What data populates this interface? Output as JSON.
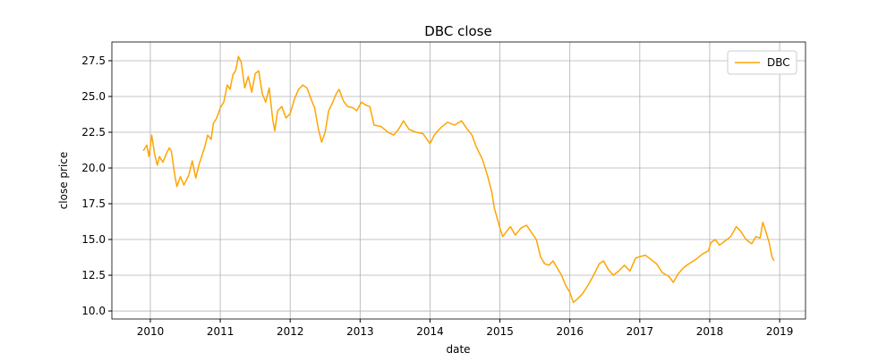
{
  "chart_data": {
    "type": "line",
    "title": "DBC close",
    "xlabel": "date",
    "ylabel": "close price",
    "x": [
      2009.9,
      2009.95,
      2009.98,
      2010.0,
      2010.02,
      2010.06,
      2010.1,
      2010.13,
      2010.18,
      2010.22,
      2010.27,
      2010.3,
      2010.35,
      2010.38,
      2010.43,
      2010.48,
      2010.55,
      2010.6,
      2010.65,
      2010.7,
      2010.78,
      2010.82,
      2010.87,
      2010.9,
      2010.95,
      2011.0,
      2011.05,
      2011.1,
      2011.14,
      2011.18,
      2011.22,
      2011.26,
      2011.3,
      2011.35,
      2011.4,
      2011.45,
      2011.5,
      2011.55,
      2011.6,
      2011.65,
      2011.7,
      2011.75,
      2011.78,
      2011.82,
      2011.88,
      2011.94,
      2012.0,
      2012.06,
      2012.12,
      2012.18,
      2012.24,
      2012.3,
      2012.35,
      2012.4,
      2012.45,
      2012.5,
      2012.55,
      2012.6,
      2012.66,
      2012.7,
      2012.76,
      2012.82,
      2012.9,
      2012.95,
      2013.02,
      2013.08,
      2013.14,
      2013.2,
      2013.3,
      2013.4,
      2013.48,
      2013.55,
      2013.62,
      2013.7,
      2013.8,
      2013.9,
      2014.0,
      2014.06,
      2014.15,
      2014.25,
      2014.35,
      2014.45,
      2014.52,
      2014.6,
      2014.66,
      2014.75,
      2014.82,
      2014.88,
      2014.92,
      2015.0,
      2015.04,
      2015.1,
      2015.15,
      2015.22,
      2015.3,
      2015.38,
      2015.45,
      2015.52,
      2015.58,
      2015.64,
      2015.7,
      2015.76,
      2015.82,
      2015.88,
      2015.94,
      2016.0,
      2016.05,
      2016.1,
      2016.18,
      2016.26,
      2016.34,
      2016.42,
      2016.48,
      2016.55,
      2016.62,
      2016.7,
      2016.78,
      2016.86,
      2016.94,
      2017.0,
      2017.08,
      2017.16,
      2017.24,
      2017.32,
      2017.42,
      2017.48,
      2017.55,
      2017.62,
      2017.7,
      2017.8,
      2017.9,
      2017.98,
      2018.02,
      2018.08,
      2018.14,
      2018.22,
      2018.3,
      2018.38,
      2018.44,
      2018.52,
      2018.6,
      2018.66,
      2018.72,
      2018.76,
      2018.8,
      2018.85,
      2018.89,
      2018.92
    ],
    "series": [
      {
        "name": "DBC",
        "color": "#ffa500",
        "values": [
          21.2,
          21.6,
          20.8,
          21.5,
          22.3,
          21.0,
          20.2,
          20.8,
          20.4,
          20.9,
          21.4,
          21.2,
          19.5,
          18.7,
          19.4,
          18.8,
          19.5,
          20.5,
          19.3,
          20.3,
          21.5,
          22.3,
          22.0,
          23.1,
          23.5,
          24.2,
          24.6,
          25.8,
          25.5,
          26.5,
          26.8,
          27.8,
          27.4,
          25.6,
          26.4,
          25.3,
          26.6,
          26.8,
          25.2,
          24.6,
          25.6,
          23.4,
          22.6,
          24.0,
          24.3,
          23.5,
          23.8,
          24.8,
          25.5,
          25.8,
          25.6,
          24.8,
          24.2,
          22.8,
          21.8,
          22.5,
          24.0,
          24.5,
          25.2,
          25.5,
          24.7,
          24.3,
          24.2,
          24.0,
          24.6,
          24.4,
          24.3,
          23.0,
          22.9,
          22.5,
          22.3,
          22.7,
          23.3,
          22.7,
          22.5,
          22.4,
          21.7,
          22.3,
          22.8,
          23.2,
          23.0,
          23.3,
          22.8,
          22.3,
          21.5,
          20.6,
          19.5,
          18.4,
          17.2,
          15.8,
          15.2,
          15.6,
          15.9,
          15.3,
          15.8,
          16.0,
          15.5,
          15.0,
          13.8,
          13.3,
          13.2,
          13.5,
          13.0,
          12.5,
          11.8,
          11.3,
          10.6,
          10.8,
          11.2,
          11.8,
          12.5,
          13.3,
          13.5,
          12.9,
          12.5,
          12.8,
          13.2,
          12.8,
          13.7,
          13.8,
          13.9,
          13.6,
          13.3,
          12.7,
          12.4,
          12.0,
          12.6,
          13.0,
          13.3,
          13.6,
          14.0,
          14.2,
          14.8,
          15.0,
          14.6,
          14.9,
          15.2,
          15.9,
          15.6,
          15.0,
          14.7,
          15.2,
          15.1,
          16.2,
          15.6,
          14.8,
          13.8,
          13.5
        ]
      }
    ],
    "xlim": [
      2009.45,
      2019.37
    ],
    "xticks": [
      2010,
      2011,
      2012,
      2013,
      2014,
      2015,
      2016,
      2017,
      2018,
      2019
    ],
    "ylim": [
      9.44,
      28.81
    ],
    "yticks": [
      {
        "value": 10,
        "label": "10.0"
      },
      12.5,
      {
        "value": 15,
        "label": "15.0"
      },
      17.5,
      {
        "value": 20,
        "label": "20.0"
      },
      22.5,
      {
        "value": 25,
        "label": "25.0"
      },
      27.5
    ],
    "grid": true,
    "legend": "upper right"
  }
}
